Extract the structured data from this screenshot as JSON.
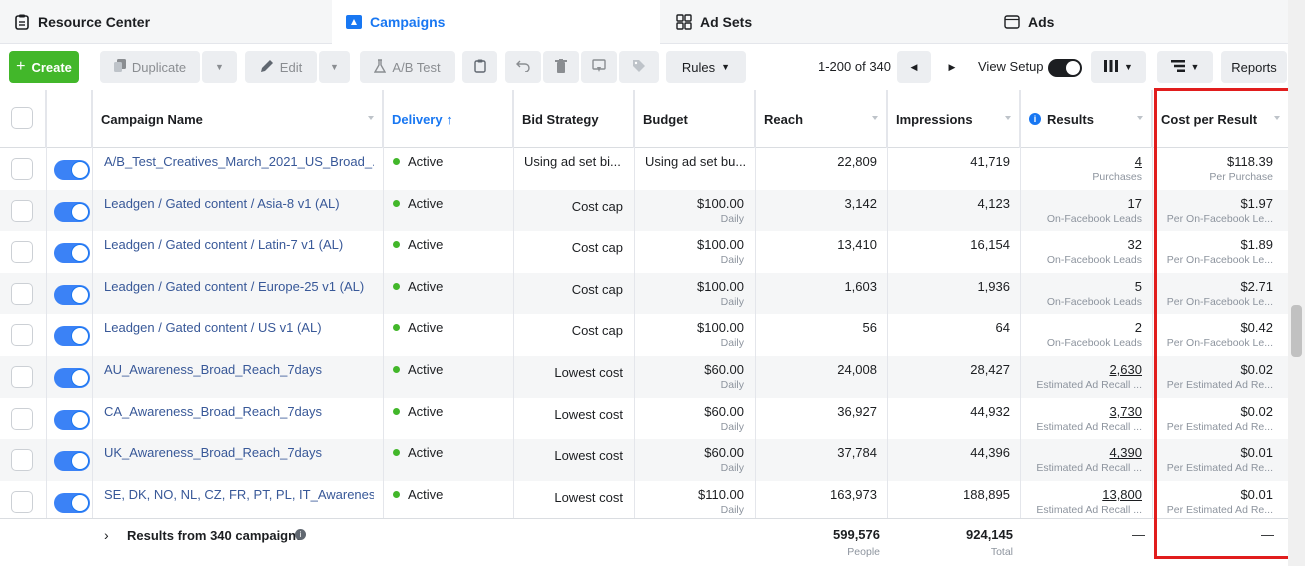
{
  "tabs": [
    {
      "label": "Resource Center",
      "icon": "clipboard-icon"
    },
    {
      "label": "Campaigns",
      "icon": "campaign-icon",
      "selected": true
    },
    {
      "label": "Ad Sets",
      "icon": "grid-icon"
    },
    {
      "label": "Ads",
      "icon": "ad-icon"
    }
  ],
  "toolbar": {
    "create": "Create",
    "duplicate": "Duplicate",
    "edit": "Edit",
    "ab_test": "A/B Test",
    "rules": "Rules",
    "pager": "1-200 of 340",
    "view_setup": "View Setup",
    "reports": "Reports"
  },
  "columns": {
    "name": "Campaign Name",
    "delivery": "Delivery ↑",
    "bid": "Bid Strategy",
    "budget": "Budget",
    "reach": "Reach",
    "impressions": "Impressions",
    "results": "Results",
    "cpr": "Cost per Result"
  },
  "rows": [
    {
      "name": "A/B_Test_Creatives_March_2021_US_Broad_...",
      "delivery": "Active",
      "bid": "Using ad set bi...",
      "budget": "Using ad set bu...",
      "budget_sub": "",
      "reach": "22,809",
      "impressions": "41,719",
      "results": "4",
      "results_sub": "Purchases",
      "cpr": "$118.39",
      "cpr_sub": "Per Purchase",
      "underline": true
    },
    {
      "name": "Leadgen / Gated content / Asia-8 v1 (AL)",
      "delivery": "Active",
      "bid": "Cost cap",
      "budget": "$100.00",
      "budget_sub": "Daily",
      "reach": "3,142",
      "impressions": "4,123",
      "results": "17",
      "results_sub": "On-Facebook Leads",
      "cpr": "$1.97",
      "cpr_sub": "Per On-Facebook Le...",
      "underline": false
    },
    {
      "name": "Leadgen / Gated content / Latin-7 v1 (AL)",
      "delivery": "Active",
      "bid": "Cost cap",
      "budget": "$100.00",
      "budget_sub": "Daily",
      "reach": "13,410",
      "impressions": "16,154",
      "results": "32",
      "results_sub": "On-Facebook Leads",
      "cpr": "$1.89",
      "cpr_sub": "Per On-Facebook Le...",
      "underline": false
    },
    {
      "name": "Leadgen / Gated content / Europe-25 v1 (AL)",
      "delivery": "Active",
      "bid": "Cost cap",
      "budget": "$100.00",
      "budget_sub": "Daily",
      "reach": "1,603",
      "impressions": "1,936",
      "results": "5",
      "results_sub": "On-Facebook Leads",
      "cpr": "$2.71",
      "cpr_sub": "Per On-Facebook Le...",
      "underline": false
    },
    {
      "name": "Leadgen / Gated content / US v1 (AL)",
      "delivery": "Active",
      "bid": "Cost cap",
      "budget": "$100.00",
      "budget_sub": "Daily",
      "reach": "56",
      "impressions": "64",
      "results": "2",
      "results_sub": "On-Facebook Leads",
      "cpr": "$0.42",
      "cpr_sub": "Per On-Facebook Le...",
      "underline": false
    },
    {
      "name": "AU_Awareness_Broad_Reach_7days",
      "delivery": "Active",
      "bid": "Lowest cost",
      "budget": "$60.00",
      "budget_sub": "Daily",
      "reach": "24,008",
      "impressions": "28,427",
      "results": "2,630",
      "results_sub": "Estimated Ad Recall ...",
      "cpr": "$0.02",
      "cpr_sub": "Per Estimated Ad Re...",
      "underline": true
    },
    {
      "name": "CA_Awareness_Broad_Reach_7days",
      "delivery": "Active",
      "bid": "Lowest cost",
      "budget": "$60.00",
      "budget_sub": "Daily",
      "reach": "36,927",
      "impressions": "44,932",
      "results": "3,730",
      "results_sub": "Estimated Ad Recall ...",
      "cpr": "$0.02",
      "cpr_sub": "Per Estimated Ad Re...",
      "underline": true
    },
    {
      "name": "UK_Awareness_Broad_Reach_7days",
      "delivery": "Active",
      "bid": "Lowest cost",
      "budget": "$60.00",
      "budget_sub": "Daily",
      "reach": "37,784",
      "impressions": "44,396",
      "results": "4,390",
      "results_sub": "Estimated Ad Recall ...",
      "cpr": "$0.01",
      "cpr_sub": "Per Estimated Ad Re...",
      "underline": true
    },
    {
      "name": "SE, DK, NO, NL, CZ, FR, PT, PL, IT_Awareness_...",
      "delivery": "Active",
      "bid": "Lowest cost",
      "budget": "$110.00",
      "budget_sub": "Daily",
      "reach": "163,973",
      "impressions": "188,895",
      "results": "13,800",
      "results_sub": "Estimated Ad Recall ...",
      "cpr": "$0.01",
      "cpr_sub": "Per Estimated Ad Re...",
      "underline": true
    }
  ],
  "footer": {
    "summary": "Results from 340 campaigns",
    "reach": "599,576",
    "reach_sub": "People",
    "impressions": "924,145",
    "impressions_sub": "Total",
    "results": "—",
    "cpr": "—"
  },
  "colors": {
    "accent": "#1877f2",
    "create": "#42b72a",
    "highlight": "#e11d1d"
  }
}
